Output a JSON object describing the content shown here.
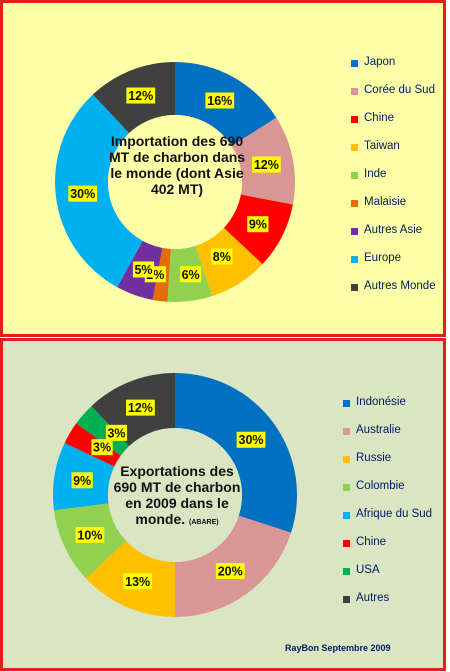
{
  "charts": [
    {
      "title": "Importation des 690 MT de charbon dans le monde (dont Asie 402 MT)",
      "legend": [
        "Japon",
        "Corée du Sud",
        "Chine",
        "Taiwan",
        "Inde",
        "Malaisie",
        "Autres Asie",
        "Europe",
        "Autres Monde"
      ]
    },
    {
      "title": "Exportations des 690 MT de charbon en 2009 dans le monde.",
      "note": "(ABARE)",
      "legend": [
        "Indonésie",
        "Australie",
        "Russie",
        "Colombie",
        "Afrique du Sud",
        "Chine",
        "USA",
        "Autres"
      ]
    }
  ],
  "credit": "RayBon Septembre 2009",
  "chart_data": [
    {
      "type": "pie",
      "variant": "donut",
      "categories": [
        "Japon",
        "Corée du Sud",
        "Chine",
        "Taiwan",
        "Inde",
        "Malaisie",
        "Autres Asie",
        "Europe",
        "Autres Monde"
      ],
      "values": [
        16,
        12,
        9,
        8,
        6,
        2,
        5,
        30,
        12
      ],
      "labels": [
        "16%",
        "12%",
        "9%",
        "8%",
        "6%",
        "2%",
        "5%",
        "30%",
        "12%"
      ],
      "colors": [
        "#0070c0",
        "#d99694",
        "#ff0000",
        "#ffc000",
        "#92d050",
        "#e46c0a",
        "#7030a0",
        "#00b0f0",
        "#404040"
      ],
      "title": "Importation des 690 MT de charbon dans le monde (dont Asie 402 MT)",
      "legend_position": "right"
    },
    {
      "type": "pie",
      "variant": "donut",
      "categories": [
        "Indonésie",
        "Australie",
        "Russie",
        "Colombie",
        "Afrique du Sud",
        "Chine",
        "USA",
        "Autres"
      ],
      "values": [
        30,
        20,
        13,
        10,
        9,
        3,
        3,
        12
      ],
      "labels": [
        "30%",
        "20%",
        "13%",
        "10%",
        "9%",
        "3%",
        "3%",
        "12%"
      ],
      "colors": [
        "#0070c0",
        "#d99694",
        "#ffc000",
        "#92d050",
        "#00b0f0",
        "#ff0000",
        "#00b050",
        "#404040"
      ],
      "title": "Exportations des 690 MT de charbon en 2009 dans le monde. (ABARE)",
      "legend_position": "right"
    }
  ]
}
